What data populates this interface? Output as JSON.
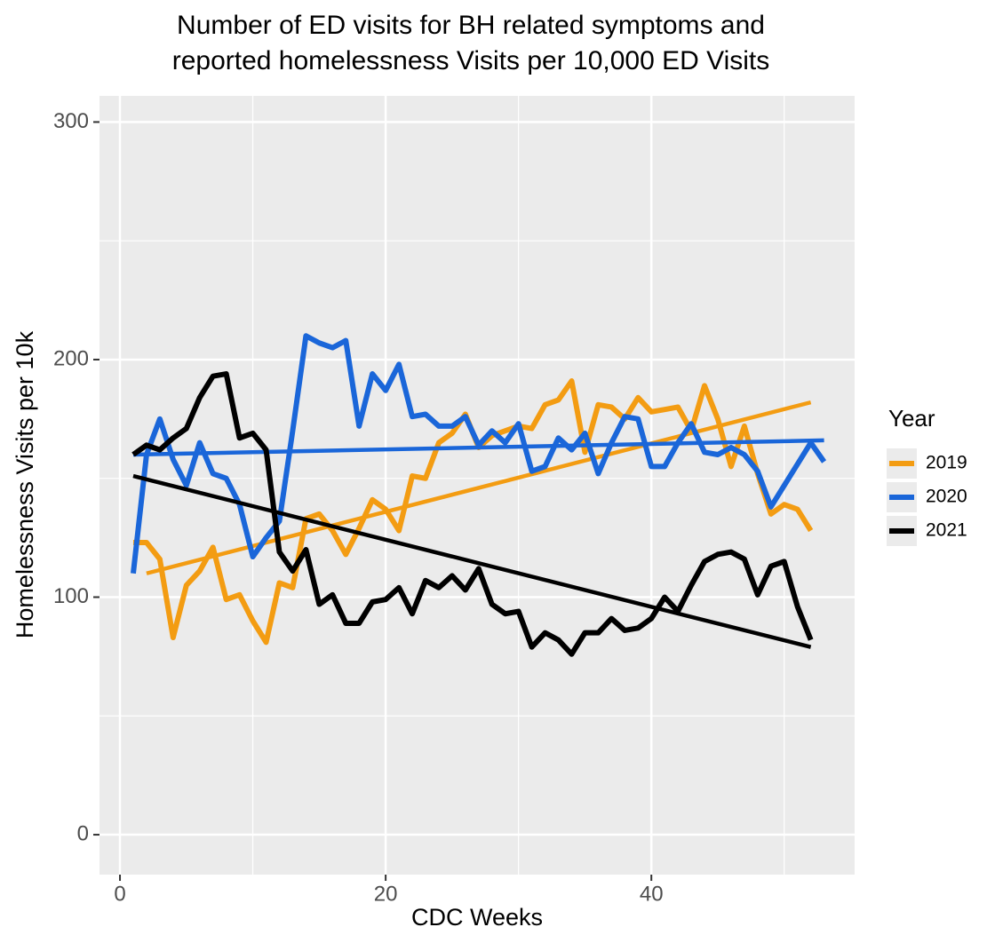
{
  "chart_data": {
    "type": "line",
    "title": [
      "Number of ED visits for BH related symptoms and",
      "reported homelessness Visits per 10,000 ED Visits"
    ],
    "x_label": "CDC Weeks",
    "y_label": "Homelessness Visits per 10k",
    "legend_title": "Year",
    "legend_position": "right",
    "grid": true,
    "x": [
      1,
      2,
      3,
      4,
      5,
      6,
      7,
      8,
      9,
      10,
      11,
      12,
      13,
      14,
      15,
      16,
      17,
      18,
      19,
      20,
      21,
      22,
      23,
      24,
      25,
      26,
      27,
      28,
      29,
      30,
      31,
      32,
      33,
      34,
      35,
      36,
      37,
      38,
      39,
      40,
      41,
      42,
      43,
      44,
      45,
      46,
      47,
      48,
      49,
      50,
      51,
      52,
      53
    ],
    "series": [
      {
        "name": "2019",
        "color": "#f39c12",
        "values": [
          123,
          123,
          116,
          83,
          105,
          111,
          121,
          99,
          101,
          90,
          81,
          106,
          104,
          133,
          135,
          128,
          118,
          129,
          141,
          137,
          128,
          151,
          150,
          165,
          169,
          177,
          163,
          168,
          170,
          172,
          171,
          181,
          183,
          191,
          161,
          181,
          180,
          175,
          184,
          178,
          179,
          180,
          170,
          189,
          175,
          155,
          172,
          152,
          135,
          139,
          137,
          128,
          null
        ],
        "trend_x": [
          2,
          52
        ],
        "trend_values": [
          110,
          182
        ]
      },
      {
        "name": "2020",
        "color": "#1a66d9",
        "values": [
          110,
          160,
          175,
          158,
          147,
          165,
          152,
          150,
          139,
          117,
          125,
          132,
          170,
          210,
          207,
          205,
          208,
          172,
          194,
          187,
          198,
          176,
          177,
          172,
          172,
          176,
          164,
          170,
          165,
          173,
          153,
          155,
          167,
          162,
          169,
          152,
          165,
          176,
          175,
          155,
          155,
          165,
          173,
          161,
          160,
          163,
          160,
          153,
          138,
          147,
          156,
          165,
          157
        ],
        "trend_x": [
          1,
          53
        ],
        "trend_values": [
          160,
          166
        ]
      },
      {
        "name": "2021",
        "color": "#000000",
        "values": [
          160,
          164,
          162,
          167,
          171,
          184,
          193,
          194,
          167,
          169,
          162,
          119,
          111,
          120,
          97,
          101,
          89,
          89,
          98,
          99,
          104,
          93,
          107,
          104,
          109,
          103,
          112,
          97,
          93,
          94,
          79,
          85,
          82,
          76,
          85,
          85,
          91,
          86,
          87,
          91,
          100,
          94,
          105,
          115,
          118,
          119,
          116,
          101,
          113,
          115,
          96,
          82,
          null
        ],
        "trend_x": [
          1,
          52
        ],
        "trend_values": [
          151,
          79
        ]
      }
    ],
    "xlim": [
      -1.54,
      55.3
    ],
    "xticks": [
      0,
      20,
      40
    ],
    "xminor": [
      10,
      30,
      50
    ],
    "ylim": [
      -16.8,
      311
    ],
    "yticks": [
      0,
      100,
      200,
      300
    ],
    "yminor": [
      50,
      150,
      250
    ]
  }
}
